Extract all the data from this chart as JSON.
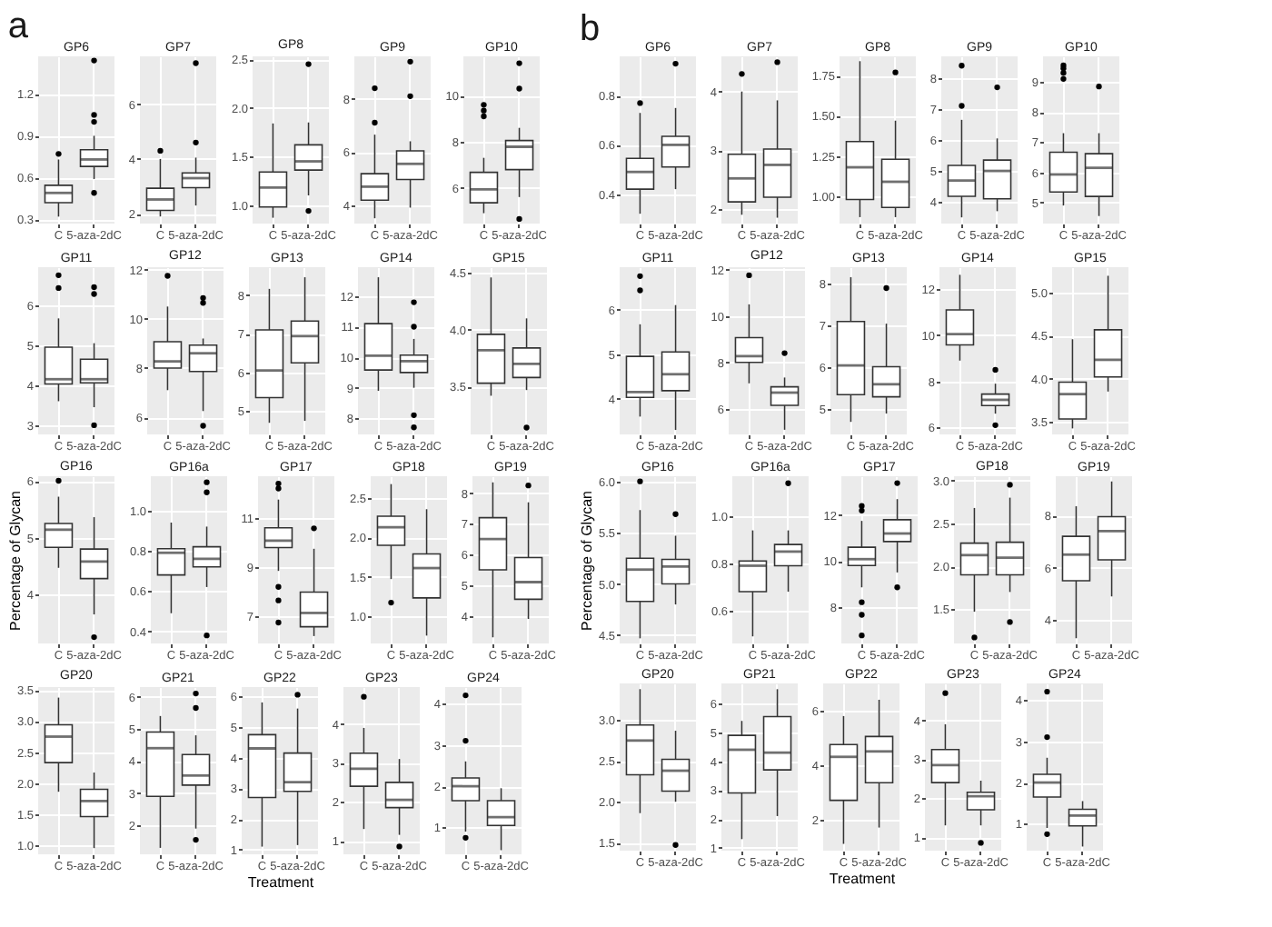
{
  "chart_data": [
    {
      "type": "box",
      "title": "GP6",
      "annotations": [
        "a"
      ],
      "categories": [
        "C",
        "5-aza-2dC"
      ],
      "ylim": [
        0.27,
        1.47
      ],
      "yticks": [
        0.3,
        0.6,
        0.9,
        1.2
      ],
      "grid": true,
      "boxes": [
        {
          "low": 0.32,
          "q1": 0.42,
          "median": 0.49,
          "q3": 0.545,
          "high": 0.73,
          "outliers": [
            0.77
          ]
        },
        {
          "low": 0.59,
          "q1": 0.68,
          "median": 0.73,
          "q3": 0.8,
          "high": 0.9,
          "outliers": [
            0.49,
            1.0,
            1.05,
            1.44
          ]
        }
      ]
    },
    {
      "type": "box",
      "title": "GP7",
      "categories": [
        "C",
        "5-aza-2dC"
      ],
      "ylim": [
        1.64,
        7.75
      ],
      "yticks": [
        2,
        4,
        6
      ],
      "grid": true,
      "boxes": [
        {
          "low": 1.9,
          "q1": 2.12,
          "median": 2.52,
          "q3": 2.93,
          "high": 4.0,
          "outliers": [
            4.3
          ]
        },
        {
          "low": 2.3,
          "q1": 2.95,
          "median": 3.3,
          "q3": 3.49,
          "high": 4.05,
          "outliers": [
            4.6,
            7.5
          ]
        }
      ]
    },
    {
      "type": "box",
      "title": "GP8",
      "categories": [
        "C",
        "5-aza-2dC"
      ],
      "ylim": [
        0.81,
        2.53
      ],
      "yticks": [
        {
          "value": 1,
          "label": "1.0"
        },
        1.5,
        {
          "value": 2,
          "label": "2.0"
        },
        2.5
      ],
      "grid": true,
      "boxes": [
        {
          "low": 0.87,
          "q1": 0.98,
          "median": 1.18,
          "q3": 1.34,
          "high": 1.84
        },
        {
          "low": 1.1,
          "q1": 1.36,
          "median": 1.45,
          "q3": 1.62,
          "high": 1.85,
          "outliers": [
            0.94,
            2.45
          ]
        }
      ]
    },
    {
      "type": "box",
      "title": "GP9",
      "categories": [
        "C",
        "5-aza-2dC"
      ],
      "ylim": [
        3.3,
        9.6
      ],
      "yticks": [
        4,
        6,
        8
      ],
      "grid": true,
      "boxes": [
        {
          "low": 3.5,
          "q1": 4.18,
          "median": 4.69,
          "q3": 5.18,
          "high": 6.65,
          "outliers": [
            7.1,
            8.4
          ]
        },
        {
          "low": 3.9,
          "q1": 4.96,
          "median": 5.55,
          "q3": 6.04,
          "high": 6.4,
          "outliers": [
            8.1,
            9.4
          ]
        }
      ]
    },
    {
      "type": "box",
      "title": "GP10",
      "categories": [
        "C",
        "5-aza-2dC"
      ],
      "ylim": [
        4.45,
        11.7
      ],
      "yticks": [
        6,
        8,
        10
      ],
      "grid": true,
      "boxes": [
        {
          "low": 4.9,
          "q1": 5.35,
          "median": 5.93,
          "q3": 6.67,
          "high": 7.3,
          "outliers": [
            9.1,
            9.35,
            9.6
          ]
        },
        {
          "low": 5.6,
          "q1": 6.79,
          "median": 7.78,
          "q3": 8.05,
          "high": 8.6,
          "outliers": [
            4.65,
            10.3,
            11.4
          ]
        }
      ]
    },
    {
      "type": "box",
      "title": "GP11",
      "categories": [
        "C",
        "5-aza-2dC"
      ],
      "ylim": [
        2.77,
        6.95
      ],
      "yticks": [
        3,
        4,
        5,
        6
      ],
      "grid": true,
      "boxes": [
        {
          "low": 3.6,
          "q1": 4.03,
          "median": 4.15,
          "q3": 4.95,
          "high": 5.67,
          "outliers": [
            6.43,
            6.75
          ]
        },
        {
          "low": 3.45,
          "q1": 4.06,
          "median": 4.15,
          "q3": 4.65,
          "high": 5.05,
          "outliers": [
            3.0,
            6.28,
            6.45
          ]
        }
      ]
    },
    {
      "type": "box",
      "title": "GP12",
      "categories": [
        "C",
        "5-aza-2dC"
      ],
      "ylim": [
        5.3,
        12.1
      ],
      "yticks": [
        6,
        8,
        10,
        12
      ],
      "grid": true,
      "boxes": [
        {
          "low": 7.1,
          "q1": 8.0,
          "median": 8.27,
          "q3": 9.07,
          "high": 10.5,
          "outliers": [
            11.75
          ]
        },
        {
          "low": 6.25,
          "q1": 7.86,
          "median": 8.6,
          "q3": 8.93,
          "high": 9.2,
          "outliers": [
            5.65,
            10.65,
            10.85
          ]
        }
      ]
    },
    {
      "type": "box",
      "title": "GP13",
      "categories": [
        "C",
        "5-aza-2dC"
      ],
      "ylim": [
        4.4,
        8.72
      ],
      "yticks": [
        5,
        6,
        7,
        8
      ],
      "grid": true,
      "boxes": [
        {
          "low": 4.7,
          "q1": 5.35,
          "median": 6.05,
          "q3": 7.1,
          "high": 8.16
        },
        {
          "low": 4.75,
          "q1": 6.25,
          "median": 6.94,
          "q3": 7.33,
          "high": 8.46
        }
      ]
    },
    {
      "type": "box",
      "title": "GP14",
      "categories": [
        "C",
        "5-aza-2dC"
      ],
      "ylim": [
        7.47,
        12.95
      ],
      "yticks": [
        8,
        9,
        10,
        11,
        12
      ],
      "grid": true,
      "boxes": [
        {
          "low": 8.9,
          "q1": 9.58,
          "median": 10.05,
          "q3": 11.1,
          "high": 12.62
        },
        {
          "low": 9.0,
          "q1": 9.5,
          "median": 9.87,
          "q3": 10.07,
          "high": 10.6,
          "outliers": [
            7.7,
            8.1,
            11.0,
            11.8
          ]
        }
      ]
    },
    {
      "type": "box",
      "title": "GP15",
      "categories": [
        "C",
        "5-aza-2dC"
      ],
      "ylim": [
        3.08,
        4.55
      ],
      "yticks": [
        3.5,
        {
          "value": 4,
          "label": "4.0"
        },
        4.5
      ],
      "grid": true,
      "boxes": [
        {
          "low": 3.42,
          "q1": 3.53,
          "median": 3.82,
          "q3": 3.96,
          "high": 4.46
        },
        {
          "low": 3.47,
          "q1": 3.58,
          "median": 3.7,
          "q3": 3.84,
          "high": 4.1,
          "outliers": [
            3.14
          ]
        }
      ]
    },
    {
      "type": "box",
      "title": "GP16",
      "ylabel": "Percentage of Glycan",
      "categories": [
        "C",
        "5-aza-2dC"
      ],
      "ylim": [
        3.14,
        6.08
      ],
      "yticks": [
        4,
        5,
        6
      ],
      "grid": true,
      "boxes": [
        {
          "low": 4.47,
          "q1": 4.83,
          "median": 5.14,
          "q3": 5.25,
          "high": 5.72,
          "outliers": [
            6.0
          ]
        },
        {
          "low": 3.65,
          "q1": 4.28,
          "median": 4.58,
          "q3": 4.8,
          "high": 5.36,
          "outliers": [
            3.25
          ]
        }
      ]
    },
    {
      "type": "box",
      "title": "GP16a",
      "categories": [
        "C",
        "5-aza-2dC"
      ],
      "ylim": [
        0.34,
        1.17
      ],
      "yticks": [
        0.4,
        0.6,
        0.8,
        {
          "value": 1,
          "label": "1.0"
        }
      ],
      "grid": true,
      "boxes": [
        {
          "low": 0.49,
          "q1": 0.68,
          "median": 0.79,
          "q3": 0.81,
          "high": 0.94
        },
        {
          "low": 0.62,
          "q1": 0.72,
          "median": 0.76,
          "q3": 0.82,
          "high": 0.92,
          "outliers": [
            0.38,
            1.09,
            1.14
          ]
        }
      ]
    },
    {
      "type": "box",
      "title": "GP17",
      "categories": [
        "C",
        "5-aza-2dC"
      ],
      "ylim": [
        5.9,
        12.7
      ],
      "yticks": [
        7,
        9,
        11
      ],
      "grid": true,
      "boxes": [
        {
          "low": 8.85,
          "q1": 9.8,
          "median": 10.08,
          "q3": 10.6,
          "high": 11.75,
          "outliers": [
            6.75,
            7.65,
            8.2,
            12.2,
            12.4
          ]
        },
        {
          "low": 6.2,
          "q1": 6.58,
          "median": 7.14,
          "q3": 7.99,
          "high": 9.75,
          "outliers": [
            10.58
          ]
        }
      ]
    },
    {
      "type": "box",
      "title": "GP18",
      "categories": [
        "C",
        "5-aza-2dC"
      ],
      "ylim": [
        0.65,
        2.78
      ],
      "yticks": [
        {
          "value": 1,
          "label": "1.0"
        },
        1.5,
        {
          "value": 2,
          "label": "2.0"
        },
        2.5
      ],
      "grid": true,
      "boxes": [
        {
          "low": 1.47,
          "q1": 1.9,
          "median": 2.13,
          "q3": 2.27,
          "high": 2.68,
          "outliers": [
            1.17
          ]
        },
        {
          "low": 0.75,
          "q1": 1.23,
          "median": 1.61,
          "q3": 1.79,
          "high": 2.36
        }
      ]
    },
    {
      "type": "box",
      "title": "GP19",
      "categories": [
        "C",
        "5-aza-2dC"
      ],
      "ylim": [
        3.1,
        8.55
      ],
      "yticks": [
        4,
        5,
        6,
        7,
        8
      ],
      "grid": true,
      "boxes": [
        {
          "low": 3.3,
          "q1": 5.5,
          "median": 6.5,
          "q3": 7.2,
          "high": 8.35
        },
        {
          "low": 3.9,
          "q1": 4.54,
          "median": 5.1,
          "q3": 5.9,
          "high": 7.7,
          "outliers": [
            8.25
          ]
        }
      ]
    },
    {
      "type": "box",
      "title": "GP20",
      "categories": [
        "C",
        "5-aza-2dC"
      ],
      "ylim": [
        0.85,
        3.55
      ],
      "yticks": [
        {
          "value": 1,
          "label": "1.0"
        },
        1.5,
        {
          "value": 2,
          "label": "2.0"
        },
        2.5,
        {
          "value": 3,
          "label": "3.0"
        },
        3.5
      ],
      "grid": true,
      "boxes": [
        {
          "low": 1.86,
          "q1": 2.33,
          "median": 2.75,
          "q3": 2.94,
          "high": 3.38
        },
        {
          "low": 0.95,
          "q1": 1.46,
          "median": 1.71,
          "q3": 1.9,
          "high": 2.17
        }
      ]
    },
    {
      "type": "box",
      "title": "GP21",
      "categories": [
        "C",
        "5-aza-2dC"
      ],
      "ylim": [
        1.1,
        6.3
      ],
      "yticks": [
        2,
        3,
        4,
        5,
        6
      ],
      "grid": true,
      "boxes": [
        {
          "low": 1.3,
          "q1": 2.9,
          "median": 4.4,
          "q3": 4.9,
          "high": 5.4
        },
        {
          "low": 1.9,
          "q1": 3.25,
          "median": 3.55,
          "q3": 4.2,
          "high": 4.8,
          "outliers": [
            1.55,
            5.65,
            6.1
          ]
        }
      ]
    },
    {
      "type": "box",
      "title": "GP22",
      "xlabel": "Treatment",
      "categories": [
        "C",
        "5-aza-2dC"
      ],
      "ylim": [
        0.85,
        6.3
      ],
      "yticks": [
        1,
        2,
        3,
        4,
        5,
        6
      ],
      "grid": true,
      "boxes": [
        {
          "low": 1.1,
          "q1": 2.7,
          "median": 4.3,
          "q3": 4.75,
          "high": 5.8
        },
        {
          "low": 1.15,
          "q1": 2.9,
          "median": 3.2,
          "q3": 4.15,
          "high": 5.6,
          "outliers": [
            6.05
          ]
        }
      ]
    },
    {
      "type": "box",
      "title": "GP23",
      "categories": [
        "C",
        "5-aza-2dC"
      ],
      "ylim": [
        0.65,
        4.95
      ],
      "yticks": [
        1,
        2,
        3,
        4
      ],
      "grid": true,
      "boxes": [
        {
          "low": 1.3,
          "q1": 2.4,
          "median": 2.85,
          "q3": 3.25,
          "high": 3.9,
          "outliers": [
            4.7
          ]
        },
        {
          "low": 1.15,
          "q1": 1.85,
          "median": 2.05,
          "q3": 2.5,
          "high": 3.1,
          "outliers": [
            0.85
          ]
        }
      ]
    },
    {
      "type": "box",
      "title": "GP24",
      "categories": [
        "C",
        "5-aza-2dC"
      ],
      "ylim": [
        0.35,
        4.4
      ],
      "yticks": [
        1,
        2,
        3,
        4
      ],
      "grid": true,
      "boxes": [
        {
          "low": 0.9,
          "q1": 1.65,
          "median": 2.0,
          "q3": 2.2,
          "high": 2.6,
          "outliers": [
            0.75,
            3.1,
            4.2
          ]
        },
        {
          "low": 0.45,
          "q1": 1.05,
          "median": 1.25,
          "q3": 1.65,
          "high": 1.95
        }
      ]
    },
    {
      "type": "box",
      "title": "GP6",
      "annotations": [
        "b"
      ],
      "categories": [
        "C",
        "5-aza-2dC"
      ],
      "ylim": [
        0.28,
        0.96
      ],
      "yticks": [
        0.4,
        0.6,
        0.8
      ],
      "grid": true,
      "boxes": [
        {
          "low": 0.32,
          "q1": 0.42,
          "median": 0.49,
          "q3": 0.545,
          "high": 0.73,
          "outliers": [
            0.77
          ]
        },
        {
          "low": 0.42,
          "q1": 0.51,
          "median": 0.6,
          "q3": 0.635,
          "high": 0.75,
          "outliers": [
            0.93
          ]
        }
      ]
    },
    {
      "type": "box",
      "title": "GP7",
      "categories": [
        "C",
        "5-aza-2dC"
      ],
      "ylim": [
        1.75,
        4.6
      ],
      "yticks": [
        2,
        3,
        4
      ],
      "grid": true,
      "boxes": [
        {
          "low": 1.9,
          "q1": 2.12,
          "median": 2.52,
          "q3": 2.93,
          "high": 4.0,
          "outliers": [
            4.3
          ]
        },
        {
          "low": 1.85,
          "q1": 2.2,
          "median": 2.75,
          "q3": 3.02,
          "high": 3.85,
          "outliers": [
            4.5
          ]
        }
      ]
    },
    {
      "type": "box",
      "title": "GP8",
      "categories": [
        "C",
        "5-aza-2dC"
      ],
      "ylim": [
        0.83,
        1.87
      ],
      "yticks": [
        {
          "value": 1,
          "label": "1.00"
        },
        1.25,
        {
          "value": 1.5,
          "label": "1.50"
        },
        1.75
      ],
      "grid": true,
      "boxes": [
        {
          "low": 0.87,
          "q1": 0.98,
          "median": 1.18,
          "q3": 1.34,
          "high": 1.84
        },
        {
          "low": 0.87,
          "q1": 0.93,
          "median": 1.09,
          "q3": 1.23,
          "high": 1.47,
          "outliers": [
            1.77
          ]
        }
      ]
    },
    {
      "type": "box",
      "title": "GP9",
      "categories": [
        "C",
        "5-aza-2dC"
      ],
      "ylim": [
        3.3,
        8.7
      ],
      "yticks": [
        4,
        5,
        6,
        7,
        8
      ],
      "grid": true,
      "boxes": [
        {
          "low": 3.5,
          "q1": 4.18,
          "median": 4.69,
          "q3": 5.18,
          "high": 6.65,
          "outliers": [
            7.1,
            8.4
          ]
        },
        {
          "low": 3.7,
          "q1": 4.1,
          "median": 5.0,
          "q3": 5.35,
          "high": 6.05,
          "outliers": [
            7.7
          ]
        }
      ]
    },
    {
      "type": "box",
      "title": "GP10",
      "categories": [
        "C",
        "5-aza-2dC"
      ],
      "ylim": [
        4.3,
        9.85
      ],
      "yticks": [
        5,
        6,
        7,
        8,
        9
      ],
      "grid": true,
      "boxes": [
        {
          "low": 4.9,
          "q1": 5.35,
          "median": 5.93,
          "q3": 6.67,
          "high": 7.3,
          "outliers": [
            9.1,
            9.3,
            9.45,
            9.55
          ]
        },
        {
          "low": 4.55,
          "q1": 5.2,
          "median": 6.15,
          "q3": 6.62,
          "high": 7.3,
          "outliers": [
            8.85
          ]
        }
      ]
    },
    {
      "type": "box",
      "title": "GP11",
      "categories": [
        "C",
        "5-aza-2dC"
      ],
      "ylim": [
        3.2,
        6.95
      ],
      "yticks": [
        4,
        5,
        6
      ],
      "grid": true,
      "boxes": [
        {
          "low": 3.6,
          "q1": 4.03,
          "median": 4.15,
          "q3": 4.95,
          "high": 5.67,
          "outliers": [
            6.43,
            6.75
          ]
        },
        {
          "low": 3.3,
          "q1": 4.18,
          "median": 4.55,
          "q3": 5.05,
          "high": 6.1
        }
      ]
    },
    {
      "type": "box",
      "title": "GP12",
      "categories": [
        "C",
        "5-aza-2dC"
      ],
      "ylim": [
        4.9,
        12.1
      ],
      "yticks": [
        6,
        8,
        10,
        12
      ],
      "grid": true,
      "boxes": [
        {
          "low": 7.1,
          "q1": 8.0,
          "median": 8.27,
          "q3": 9.07,
          "high": 10.5,
          "outliers": [
            11.75
          ]
        },
        {
          "low": 5.1,
          "q1": 6.15,
          "median": 6.7,
          "q3": 6.95,
          "high": 7.35,
          "outliers": [
            8.4
          ]
        }
      ]
    },
    {
      "type": "box",
      "title": "GP13",
      "categories": [
        "C",
        "5-aza-2dC"
      ],
      "ylim": [
        4.4,
        8.4
      ],
      "yticks": [
        5,
        6,
        7,
        8
      ],
      "grid": true,
      "boxes": [
        {
          "low": 4.7,
          "q1": 5.35,
          "median": 6.05,
          "q3": 7.1,
          "high": 8.16
        },
        {
          "low": 4.9,
          "q1": 5.3,
          "median": 5.6,
          "q3": 6.02,
          "high": 7.05,
          "outliers": [
            7.9
          ]
        }
      ]
    },
    {
      "type": "box",
      "title": "GP14",
      "categories": [
        "C",
        "5-aza-2dC"
      ],
      "ylim": [
        5.7,
        12.95
      ],
      "yticks": [
        6,
        8,
        10,
        12
      ],
      "grid": true,
      "boxes": [
        {
          "low": 8.9,
          "q1": 9.58,
          "median": 10.05,
          "q3": 11.1,
          "high": 12.62
        },
        {
          "low": 6.6,
          "q1": 6.95,
          "median": 7.2,
          "q3": 7.45,
          "high": 7.9,
          "outliers": [
            6.1,
            8.5
          ]
        }
      ]
    },
    {
      "type": "box",
      "title": "GP15",
      "categories": [
        "C",
        "5-aza-2dC"
      ],
      "ylim": [
        3.35,
        5.3
      ],
      "yticks": [
        3.5,
        {
          "value": 4,
          "label": "4.0"
        },
        4.5,
        {
          "value": 5,
          "label": "5.0"
        }
      ],
      "grid": true,
      "boxes": [
        {
          "low": 3.42,
          "q1": 3.53,
          "median": 3.82,
          "q3": 3.96,
          "high": 4.46
        },
        {
          "low": 3.85,
          "q1": 4.02,
          "median": 4.22,
          "q3": 4.57,
          "high": 5.2
        }
      ]
    },
    {
      "type": "box",
      "title": "GP16",
      "ylabel": "Percentage of Glycan",
      "categories": [
        "C",
        "5-aza-2dC"
      ],
      "ylim": [
        4.42,
        6.05
      ],
      "yticks": [
        4.5,
        {
          "value": 5,
          "label": "5.0"
        },
        5.5,
        {
          "value": 6,
          "label": "6.0"
        }
      ],
      "grid": true,
      "boxes": [
        {
          "low": 4.47,
          "q1": 4.83,
          "median": 5.14,
          "q3": 5.25,
          "high": 5.72,
          "outliers": [
            6.0
          ]
        },
        {
          "low": 4.8,
          "q1": 5.0,
          "median": 5.17,
          "q3": 5.24,
          "high": 5.47,
          "outliers": [
            5.68
          ]
        }
      ]
    },
    {
      "type": "box",
      "title": "GP16a",
      "categories": [
        "C",
        "5-aza-2dC"
      ],
      "ylim": [
        0.46,
        1.17
      ],
      "yticks": [
        0.6,
        0.8,
        {
          "value": 1,
          "label": "1.0"
        }
      ],
      "grid": true,
      "boxes": [
        {
          "low": 0.49,
          "q1": 0.68,
          "median": 0.79,
          "q3": 0.81,
          "high": 0.94
        },
        {
          "low": 0.68,
          "q1": 0.79,
          "median": 0.85,
          "q3": 0.88,
          "high": 0.94,
          "outliers": [
            1.14
          ]
        }
      ]
    },
    {
      "type": "box",
      "title": "GP17",
      "categories": [
        "C",
        "5-aza-2dC"
      ],
      "ylim": [
        6.4,
        13.7
      ],
      "yticks": [
        8,
        10,
        12
      ],
      "grid": true,
      "boxes": [
        {
          "low": 8.85,
          "q1": 9.8,
          "median": 10.08,
          "q3": 10.6,
          "high": 11.75,
          "outliers": [
            6.75,
            7.65,
            8.2,
            12.2,
            12.4
          ]
        },
        {
          "low": 9.5,
          "q1": 10.85,
          "median": 11.2,
          "q3": 11.8,
          "high": 12.7,
          "outliers": [
            8.85,
            13.4
          ]
        }
      ]
    },
    {
      "type": "box",
      "title": "GP18",
      "categories": [
        "C",
        "5-aza-2dC"
      ],
      "ylim": [
        1.1,
        3.05
      ],
      "yticks": [
        1.5,
        {
          "value": 2,
          "label": "2.0"
        },
        2.5,
        {
          "value": 3,
          "label": "3.0"
        }
      ],
      "grid": true,
      "boxes": [
        {
          "low": 1.47,
          "q1": 1.9,
          "median": 2.13,
          "q3": 2.27,
          "high": 2.68,
          "outliers": [
            1.17
          ]
        },
        {
          "low": 1.7,
          "q1": 1.9,
          "median": 2.1,
          "q3": 2.28,
          "high": 2.8,
          "outliers": [
            1.35,
            2.95
          ]
        }
      ]
    },
    {
      "type": "box",
      "title": "GP19",
      "categories": [
        "C",
        "5-aza-2dC"
      ],
      "ylim": [
        3.1,
        9.5
      ],
      "yticks": [
        4,
        6,
        8
      ],
      "grid": true,
      "boxes": [
        {
          "low": 3.3,
          "q1": 5.5,
          "median": 6.5,
          "q3": 7.2,
          "high": 8.35
        },
        {
          "low": 4.9,
          "q1": 6.3,
          "median": 7.4,
          "q3": 7.95,
          "high": 9.3
        }
      ]
    },
    {
      "type": "box",
      "title": "GP20",
      "categories": [
        "C",
        "5-aza-2dC"
      ],
      "ylim": [
        1.4,
        3.45
      ],
      "yticks": [
        1.5,
        {
          "value": 2,
          "label": "2.0"
        },
        2.5,
        {
          "value": 3,
          "label": "3.0"
        }
      ],
      "grid": true,
      "boxes": [
        {
          "low": 1.86,
          "q1": 2.33,
          "median": 2.75,
          "q3": 2.94,
          "high": 3.38
        },
        {
          "low": 2.0,
          "q1": 2.13,
          "median": 2.38,
          "q3": 2.52,
          "high": 2.87,
          "outliers": [
            1.47
          ]
        }
      ]
    },
    {
      "type": "box",
      "title": "GP21",
      "categories": [
        "C",
        "5-aza-2dC"
      ],
      "ylim": [
        0.9,
        6.7
      ],
      "yticks": [
        1,
        2,
        3,
        4,
        5,
        6
      ],
      "grid": true,
      "boxes": [
        {
          "low": 1.3,
          "q1": 2.9,
          "median": 4.4,
          "q3": 4.9,
          "high": 5.4
        },
        {
          "low": 2.1,
          "q1": 3.7,
          "median": 4.3,
          "q3": 5.55,
          "high": 6.5
        }
      ]
    },
    {
      "type": "box",
      "title": "GP22",
      "xlabel": "Treatment",
      "categories": [
        "C",
        "5-aza-2dC"
      ],
      "ylim": [
        0.85,
        7.0
      ],
      "yticks": [
        2,
        4,
        6
      ],
      "grid": true,
      "boxes": [
        {
          "low": 1.1,
          "q1": 2.7,
          "median": 4.3,
          "q3": 4.75,
          "high": 5.8
        },
        {
          "low": 1.7,
          "q1": 3.35,
          "median": 4.5,
          "q3": 5.05,
          "high": 6.4
        }
      ]
    },
    {
      "type": "box",
      "title": "GP23",
      "categories": [
        "C",
        "5-aza-2dC"
      ],
      "ylim": [
        0.65,
        4.95
      ],
      "yticks": [
        1,
        2,
        3,
        4
      ],
      "grid": true,
      "boxes": [
        {
          "low": 1.3,
          "q1": 2.4,
          "median": 2.85,
          "q3": 3.25,
          "high": 3.9,
          "outliers": [
            4.7
          ]
        },
        {
          "low": 1.3,
          "q1": 1.7,
          "median": 2.05,
          "q3": 2.15,
          "high": 2.45,
          "outliers": [
            0.85
          ]
        }
      ]
    },
    {
      "type": "box",
      "title": "GP24",
      "categories": [
        "C",
        "5-aza-2dC"
      ],
      "ylim": [
        0.35,
        4.4
      ],
      "yticks": [
        1,
        2,
        3,
        4
      ],
      "grid": true,
      "boxes": [
        {
          "low": 0.9,
          "q1": 1.65,
          "median": 2.0,
          "q3": 2.2,
          "high": 2.6,
          "outliers": [
            0.75,
            3.1,
            4.2
          ]
        },
        {
          "low": 0.45,
          "q1": 0.95,
          "median": 1.2,
          "q3": 1.35,
          "high": 1.55
        }
      ]
    }
  ]
}
